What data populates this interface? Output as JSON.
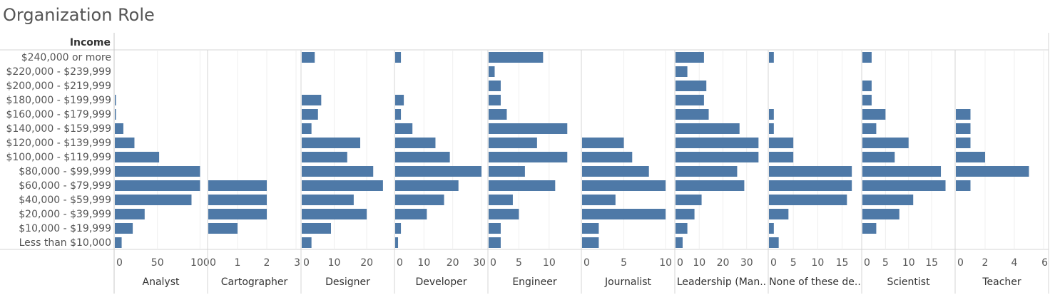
{
  "title": "Organization Role",
  "chart_data": {
    "type": "bar",
    "orientation": "horizontal",
    "title": "Organization Role",
    "row_header": "Income",
    "categories": [
      "$240,000 or more",
      "$220,000 - $239,999",
      "$200,000 - $219,999",
      "$180,000 - $199,999",
      "$160,000 - $179,999",
      "$140,000 - $159,999",
      "$120,000 - $139,999",
      "$100,000 - $119,999",
      "$80,000 - $99,999",
      "$60,000 - $79,999",
      "$40,000 - $59,999",
      "$20,000 - $39,999",
      "$10,000 - $19,999",
      "Less than $10,000"
    ],
    "bar_color": "#4e79a7",
    "panels": [
      {
        "name": "Analyst",
        "ticks": [
          "0",
          "50",
          "100"
        ],
        "tick_values": [
          0,
          50,
          100
        ],
        "xlim": [
          0,
          103
        ],
        "values": [
          0,
          0,
          0,
          1,
          1,
          10,
          23,
          52,
          100,
          100,
          90,
          35,
          21,
          8
        ]
      },
      {
        "name": "Cartographer",
        "ticks": [
          "0",
          "1",
          "2",
          "3"
        ],
        "tick_values": [
          0,
          1,
          2,
          3
        ],
        "xlim": [
          0,
          3
        ],
        "values": [
          0,
          0,
          0,
          0,
          0,
          0,
          0,
          0,
          0,
          2,
          2,
          2,
          1,
          0
        ]
      },
      {
        "name": "Designer",
        "ticks": [
          "0",
          "10",
          "20"
        ],
        "tick_values": [
          0,
          10,
          20
        ],
        "xlim": [
          0,
          27
        ],
        "values": [
          4,
          0,
          0,
          6,
          5,
          3,
          18,
          14,
          22,
          25,
          16,
          20,
          9,
          3
        ]
      },
      {
        "name": "Developer",
        "ticks": [
          "0",
          "10",
          "20",
          "30"
        ],
        "tick_values": [
          0,
          10,
          20,
          30
        ],
        "xlim": [
          0,
          30.5
        ],
        "values": [
          2,
          0,
          0,
          3,
          2,
          6,
          14,
          19,
          30,
          22,
          17,
          11,
          2,
          1
        ]
      },
      {
        "name": "Engineer",
        "ticks": [
          "0",
          "5",
          "10"
        ],
        "tick_values": [
          0,
          5,
          10
        ],
        "xlim": [
          0,
          14.5
        ],
        "values": [
          9,
          1,
          2,
          2,
          3,
          13,
          8,
          13,
          6,
          11,
          4,
          5,
          2,
          2
        ]
      },
      {
        "name": "Journalist",
        "ticks": [
          "0",
          "5",
          "10"
        ],
        "tick_values": [
          0,
          5,
          10
        ],
        "xlim": [
          0,
          10.5
        ],
        "values": [
          0,
          0,
          0,
          0,
          0,
          0,
          5,
          6,
          8,
          10,
          4,
          10,
          2,
          2
        ]
      },
      {
        "name": "Leadership (Man..",
        "ticks": [
          "0",
          "10",
          "20",
          "30"
        ],
        "tick_values": [
          0,
          10,
          20,
          30
        ],
        "xlim": [
          0,
          37
        ],
        "values": [
          12,
          5,
          13,
          12,
          14,
          27,
          35,
          35,
          26,
          29,
          11,
          8,
          5,
          3
        ]
      },
      {
        "name": "None of these de..",
        "ticks": [
          "0",
          "5",
          "10",
          "15"
        ],
        "tick_values": [
          0,
          5,
          10,
          15
        ],
        "xlim": [
          0,
          18
        ],
        "values": [
          1,
          0,
          0,
          0,
          1,
          1,
          5,
          5,
          17,
          17,
          16,
          4,
          1,
          2
        ]
      },
      {
        "name": "Scientist",
        "ticks": [
          "0",
          "5",
          "10",
          "15"
        ],
        "tick_values": [
          0,
          5,
          10,
          15
        ],
        "xlim": [
          0,
          19
        ],
        "values": [
          2,
          0,
          2,
          2,
          5,
          3,
          10,
          7,
          17,
          18,
          11,
          8,
          3,
          0
        ]
      },
      {
        "name": "Teacher",
        "ticks": [
          "0",
          "2",
          "4",
          "6"
        ],
        "tick_values": [
          0,
          2,
          4,
          6
        ],
        "xlim": [
          0,
          6
        ],
        "values": [
          0,
          0,
          0,
          0,
          1,
          1,
          1,
          2,
          5,
          1,
          0,
          0,
          0,
          0
        ]
      }
    ]
  }
}
